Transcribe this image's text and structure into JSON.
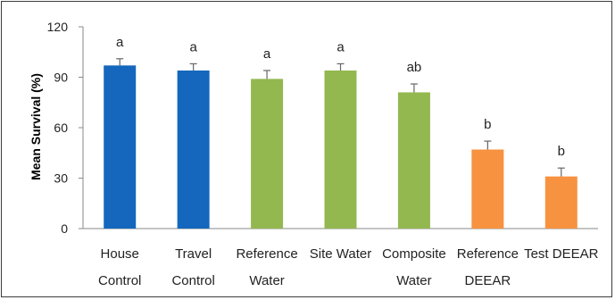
{
  "chart_data": {
    "type": "bar",
    "title": "",
    "xlabel": "",
    "ylabel": "Mean Survival (%)",
    "ylim": [
      0,
      120
    ],
    "yticks": [
      "0",
      "30",
      "60",
      "90",
      "120"
    ],
    "grid": false,
    "legend": "none",
    "categories": [
      [
        "House",
        "Control"
      ],
      [
        "Travel",
        "Control"
      ],
      [
        "Reference",
        "Water"
      ],
      [
        "Site Water"
      ],
      [
        "Composite",
        "Water"
      ],
      [
        "Reference",
        "DEEAR"
      ],
      [
        "Test DEEAR"
      ]
    ],
    "values": [
      97,
      94,
      89,
      94,
      81,
      47,
      31
    ],
    "error": [
      4,
      4,
      5,
      4,
      5,
      5,
      5
    ],
    "significance": [
      "a",
      "a",
      "a",
      "a",
      "ab",
      "b",
      "b"
    ],
    "bar_colors": [
      "#1467bd",
      "#1467bd",
      "#93b850",
      "#93b850",
      "#93b850",
      "#f79240",
      "#f79240"
    ]
  }
}
